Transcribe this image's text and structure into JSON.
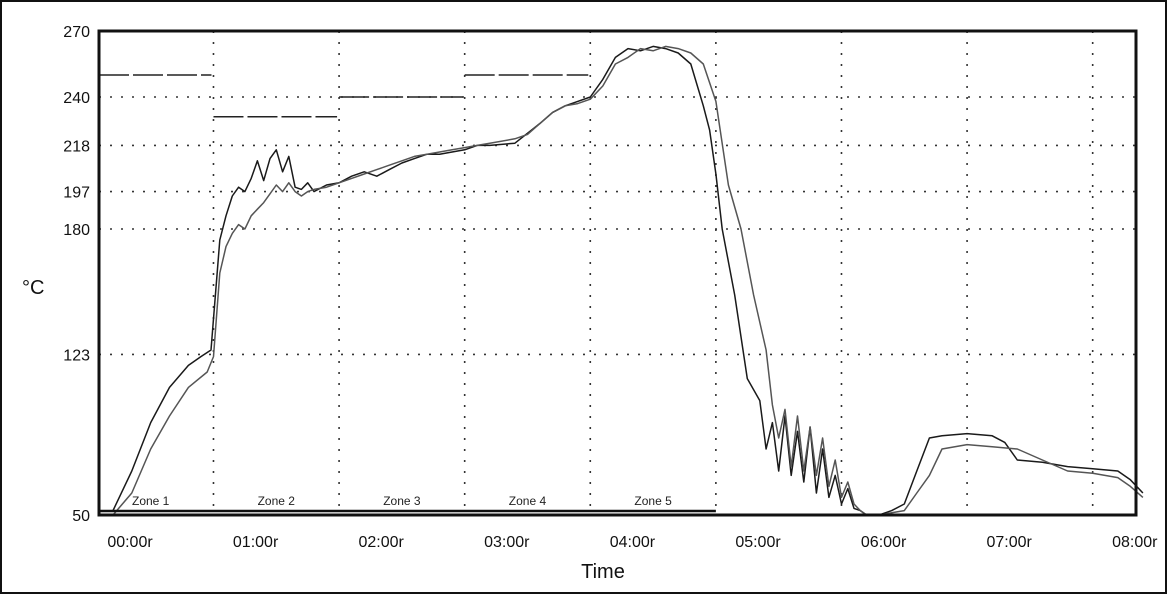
{
  "chart_data": {
    "type": "line",
    "title": "",
    "xlabel": "Time",
    "ylabel": "°C",
    "xlim": [
      0,
      8.25
    ],
    "ylim": [
      50,
      270
    ],
    "x_tick_labels": [
      "00:00r",
      "01:00r",
      "02:00r",
      "03:00r",
      "04:00r",
      "05:00r",
      "06:00r",
      "07:00r",
      "08:00r"
    ],
    "x_ticks": [
      0,
      1,
      2,
      3,
      4,
      5,
      6,
      7,
      8
    ],
    "y_ticks": [
      50,
      123,
      180,
      197,
      218,
      240,
      270
    ],
    "y_tick_labels": [
      "50",
      "123",
      "180",
      "197",
      "218",
      "240",
      "270"
    ],
    "grid": true,
    "zone_boundaries": [
      -0.2,
      0.8,
      1.8,
      2.8,
      3.8,
      4.8
    ],
    "zones": [
      {
        "label": "Zone 1",
        "x": 0.3,
        "setpoint": 250
      },
      {
        "label": "Zone 2",
        "x": 1.3,
        "setpoint": 231
      },
      {
        "label": "Zone 3",
        "x": 2.3,
        "setpoint": 240
      },
      {
        "label": "Zone 4",
        "x": 3.3,
        "setpoint": 250
      },
      {
        "label": "Zone 5",
        "x": 4.3,
        "setpoint": null
      }
    ],
    "series": [
      {
        "x": [
          0.0,
          0.15,
          0.3,
          0.45,
          0.6,
          0.7,
          0.78,
          0.85,
          0.9,
          0.95,
          1.0,
          1.05,
          1.1,
          1.15,
          1.2,
          1.25,
          1.3,
          1.35,
          1.4,
          1.45,
          1.5,
          1.55,
          1.6,
          1.7,
          1.8,
          1.9,
          2.0,
          2.1,
          2.2,
          2.3,
          2.4,
          2.5,
          2.6,
          2.7,
          2.8,
          2.9,
          3.0,
          3.2,
          3.4,
          3.5,
          3.6,
          3.7,
          3.8,
          3.9,
          4.0,
          4.1,
          4.2,
          4.3,
          4.4,
          4.5,
          4.6,
          4.7,
          4.75,
          4.8,
          4.85,
          4.95,
          5.05,
          5.15,
          5.2,
          5.25,
          5.3,
          5.35,
          5.4,
          5.45,
          5.5,
          5.55,
          5.6,
          5.65,
          5.7,
          5.75,
          5.8,
          5.85,
          5.9,
          5.95,
          6.0,
          6.1,
          6.2,
          6.3,
          6.4,
          6.5,
          6.6,
          6.8,
          7.0,
          7.1,
          7.2,
          7.4,
          7.6,
          7.8,
          8.0,
          8.1,
          8.2
        ],
        "values": [
          52,
          70,
          92,
          108,
          118,
          122,
          125,
          175,
          186,
          195,
          199,
          197,
          203,
          211,
          202,
          212,
          216,
          206,
          213,
          199,
          198,
          201,
          197,
          200,
          201,
          204,
          206,
          204,
          207,
          210,
          212,
          214,
          214,
          215,
          216,
          218,
          218,
          219,
          228,
          233,
          236,
          238,
          240,
          248,
          258,
          262,
          261,
          263,
          262,
          260,
          255,
          236,
          225,
          205,
          180,
          150,
          112,
          102,
          80,
          92,
          70,
          95,
          68,
          88,
          65,
          90,
          60,
          80,
          58,
          68,
          55,
          62,
          53,
          52,
          50,
          50,
          52,
          55,
          70,
          85,
          86,
          87,
          86,
          83,
          75,
          74,
          72,
          71,
          70,
          66,
          60
        ]
      },
      {
        "x": [
          0.0,
          0.15,
          0.3,
          0.45,
          0.6,
          0.75,
          0.8,
          0.85,
          0.9,
          0.95,
          1.0,
          1.05,
          1.1,
          1.15,
          1.2,
          1.25,
          1.3,
          1.35,
          1.4,
          1.45,
          1.5,
          1.55,
          1.6,
          1.7,
          1.8,
          1.9,
          2.0,
          2.1,
          2.2,
          2.3,
          2.4,
          2.5,
          2.6,
          2.7,
          2.8,
          2.9,
          3.0,
          3.2,
          3.3,
          3.4,
          3.5,
          3.6,
          3.7,
          3.8,
          3.9,
          4.0,
          4.1,
          4.2,
          4.3,
          4.4,
          4.5,
          4.6,
          4.7,
          4.8,
          4.9,
          5.0,
          5.1,
          5.2,
          5.25,
          5.3,
          5.35,
          5.4,
          5.45,
          5.5,
          5.55,
          5.6,
          5.65,
          5.7,
          5.75,
          5.8,
          5.85,
          5.9,
          5.95,
          6.0,
          6.1,
          6.2,
          6.3,
          6.4,
          6.5,
          6.6,
          6.8,
          7.0,
          7.2,
          7.4,
          7.6,
          7.8,
          8.0,
          8.1,
          8.2
        ],
        "values": [
          50,
          60,
          80,
          95,
          108,
          115,
          122,
          160,
          172,
          178,
          182,
          180,
          186,
          189,
          192,
          196,
          200,
          197,
          201,
          197,
          195,
          197,
          198,
          199,
          201,
          203,
          205,
          207,
          209,
          211,
          213,
          214,
          215,
          216,
          217,
          218,
          219,
          221,
          223,
          228,
          233,
          236,
          237,
          239,
          245,
          255,
          258,
          262,
          261,
          263,
          262,
          260,
          255,
          238,
          200,
          180,
          150,
          125,
          100,
          85,
          98,
          72,
          95,
          70,
          90,
          68,
          85,
          63,
          75,
          58,
          65,
          55,
          52,
          50,
          50,
          51,
          52,
          60,
          68,
          80,
          82,
          81,
          80,
          75,
          70,
          69,
          67,
          63,
          58
        ]
      }
    ]
  }
}
